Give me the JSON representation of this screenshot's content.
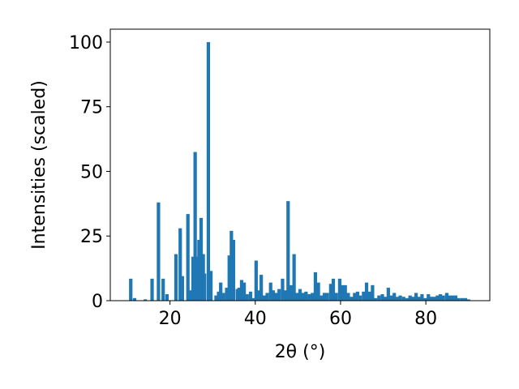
{
  "chart_data": {
    "type": "bar",
    "xlabel": "2θ (°)",
    "ylabel": "Intensities (scaled)",
    "xlim": [
      6,
      95
    ],
    "ylim": [
      0,
      105
    ],
    "xticks": [
      20,
      40,
      60,
      80
    ],
    "yticks": [
      0,
      25,
      50,
      75,
      100
    ],
    "grid": false,
    "bar_color": "#1f77b4",
    "bar_width": 0.8,
    "series": [
      {
        "x": [
          10.8,
          11.7,
          14.2,
          15.8,
          17.3,
          18.4,
          19.3,
          21.4,
          22.4,
          22.9,
          24.2,
          24.7,
          25.4,
          25.9,
          26.3,
          26.8,
          27.3,
          27.8,
          28.1,
          29.0,
          29.6,
          30.8,
          31.4,
          31.9,
          32.5,
          33.3,
          33.9,
          34.4,
          34.9,
          35.8,
          36.2,
          36.8,
          37.4,
          38.1,
          38.9,
          39.6,
          40.2,
          40.8,
          41.4,
          42.1,
          42.8,
          43.6,
          44.2,
          44.9,
          45.6,
          46.4,
          47.1,
          47.7,
          48.4,
          49.1,
          49.8,
          50.5,
          51.2,
          51.9,
          52.7,
          53.4,
          54.1,
          54.8,
          55.5,
          56.2,
          56.9,
          57.7,
          58.3,
          59.0,
          59.8,
          60.5,
          61.1,
          61.8,
          62.6,
          63.3,
          64.0,
          64.6,
          65.4,
          66.1,
          66.8,
          67.5,
          68.2,
          69.0,
          69.8,
          70.5,
          71.2,
          71.9,
          72.6,
          73.3,
          74.0,
          74.8,
          75.6,
          76.3,
          77.0,
          77.7,
          78.4,
          79.1,
          79.9,
          80.6,
          81.3,
          82.0,
          82.7,
          83.4,
          84.1,
          84.9,
          85.6,
          86.3,
          87.0,
          87.7,
          88.5,
          89.3,
          90.0
        ],
        "values": [
          8.5,
          1.0,
          0.5,
          8.5,
          38,
          8.5,
          2.5,
          18,
          28,
          9.5,
          33.5,
          4,
          17,
          57.5,
          17,
          23.5,
          32,
          18,
          10.5,
          100,
          11.5,
          2,
          3.5,
          7,
          3,
          5,
          17.5,
          27,
          23.5,
          4.5,
          5,
          8,
          7,
          2.5,
          3.5,
          1,
          15.5,
          4,
          10,
          2,
          3,
          7,
          4,
          3,
          4.5,
          8.5,
          4,
          38.5,
          6,
          18,
          3,
          4.5,
          3,
          3.5,
          2.5,
          3,
          11,
          7,
          2,
          3,
          3,
          6.5,
          8.5,
          3,
          8.5,
          6,
          6,
          3,
          1.5,
          3,
          3.5,
          2,
          3.5,
          7,
          3.5,
          6,
          1,
          2,
          2.5,
          1.5,
          5,
          2,
          3,
          1.5,
          2,
          1.5,
          1,
          2,
          1.5,
          3,
          1.5,
          2.5,
          1,
          2.5,
          1.5,
          1.5,
          2,
          2.5,
          2,
          3,
          2,
          2,
          2,
          1,
          1,
          1,
          0.5
        ]
      }
    ]
  }
}
